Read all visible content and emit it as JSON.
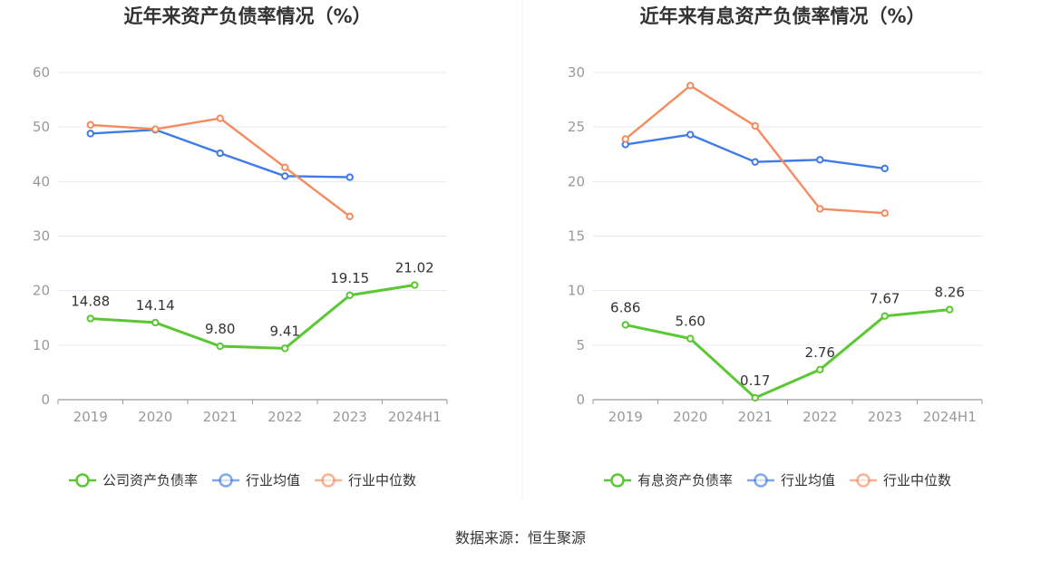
{
  "source": "数据来源：恒生聚源",
  "colors": {
    "company": "#5ac832",
    "average": "#3f7be6",
    "median": "#f58b5e",
    "grid": "#e6e9f2",
    "axis": "#999999"
  },
  "chart_data": [
    {
      "type": "line",
      "title": "近年来资产负债率情况（%）",
      "categories": [
        "2019",
        "2020",
        "2021",
        "2022",
        "2023",
        "2024H1"
      ],
      "ylim": [
        0,
        60
      ],
      "yticks": [
        0,
        10,
        20,
        30,
        40,
        50,
        60
      ],
      "grid": true,
      "legend_position": "bottom",
      "series": [
        {
          "name": "公司资产负债率",
          "key": "company",
          "values": [
            14.88,
            14.14,
            9.8,
            9.41,
            19.15,
            21.02
          ],
          "labels": [
            "14.88",
            "14.14",
            "9.80",
            "9.41",
            "19.15",
            "21.02"
          ]
        },
        {
          "name": "行业均值",
          "key": "average",
          "values": [
            48.8,
            49.5,
            45.2,
            41.0,
            40.8,
            null
          ]
        },
        {
          "name": "行业中位数",
          "key": "median",
          "values": [
            50.4,
            49.6,
            51.6,
            42.6,
            33.6,
            null
          ]
        }
      ]
    },
    {
      "type": "line",
      "title": "近年来有息资产负债率情况（%）",
      "categories": [
        "2019",
        "2020",
        "2021",
        "2022",
        "2023",
        "2024H1"
      ],
      "ylim": [
        0,
        30
      ],
      "yticks": [
        0,
        5,
        10,
        15,
        20,
        25,
        30
      ],
      "grid": true,
      "legend_position": "bottom",
      "series": [
        {
          "name": "有息资产负债率",
          "key": "company",
          "values": [
            6.86,
            5.6,
            0.17,
            2.76,
            7.67,
            8.26
          ],
          "labels": [
            "6.86",
            "5.60",
            "0.17",
            "2.76",
            "7.67",
            "8.26"
          ]
        },
        {
          "name": "行业均值",
          "key": "average",
          "values": [
            23.4,
            24.3,
            21.8,
            22.0,
            21.2,
            null
          ]
        },
        {
          "name": "行业中位数",
          "key": "median",
          "values": [
            23.9,
            28.8,
            25.1,
            17.5,
            17.1,
            null
          ]
        }
      ]
    }
  ]
}
